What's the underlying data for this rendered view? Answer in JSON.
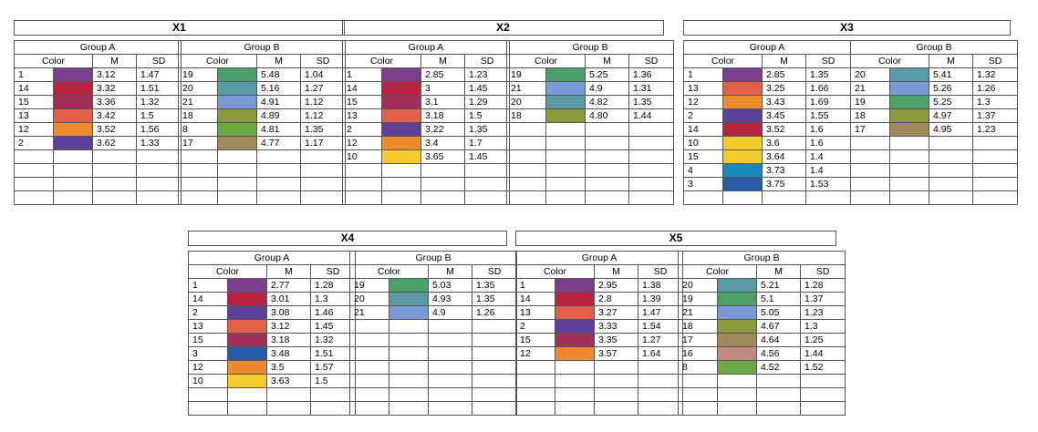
{
  "col_color": "Color",
  "col_m": "M",
  "col_sd": "SD",
  "panels": [
    {
      "title": "X1",
      "groups": [
        {
          "title": "Group A",
          "rows": [
            {
              "id": "1",
              "color": "#7b3f8c",
              "m": "3.12",
              "sd": "1.47"
            },
            {
              "id": "14",
              "color": "#b8233f",
              "m": "3.32",
              "sd": "1.51"
            },
            {
              "id": "15",
              "color": "#a0305a",
              "m": "3.36",
              "sd": "1.32"
            },
            {
              "id": "13",
              "color": "#e3604a",
              "m": "3.42",
              "sd": "1.5"
            },
            {
              "id": "12",
              "color": "#f08a30",
              "m": "3.52",
              "sd": "1.56"
            },
            {
              "id": "2",
              "color": "#5e3f9a",
              "m": "3.62",
              "sd": "1.33"
            }
          ]
        },
        {
          "title": "Group B",
          "rows": [
            {
              "id": "19",
              "color": "#4da06a",
              "m": "5.48",
              "sd": "1.04"
            },
            {
              "id": "20",
              "color": "#5a9aa6",
              "m": "5.16",
              "sd": "1.27"
            },
            {
              "id": "21",
              "color": "#7b9ad8",
              "m": "4.91",
              "sd": "1.12"
            },
            {
              "id": "18",
              "color": "#8a9a3c",
              "m": "4.89",
              "sd": "1.12"
            },
            {
              "id": "8",
              "color": "#6aaa44",
              "m": "4.81",
              "sd": "1.35"
            },
            {
              "id": "17",
              "color": "#a08a5a",
              "m": "4.77",
              "sd": "1.17"
            }
          ]
        }
      ]
    },
    {
      "title": "X2",
      "groups": [
        {
          "title": "Group A",
          "rows": [
            {
              "id": "1",
              "color": "#7b3f8c",
              "m": "2.85",
              "sd": "1.23"
            },
            {
              "id": "14",
              "color": "#b8233f",
              "m": "3",
              "sd": "1.45"
            },
            {
              "id": "15",
              "color": "#a0305a",
              "m": "3.1",
              "sd": "1.29"
            },
            {
              "id": "13",
              "color": "#e3604a",
              "m": "3.18",
              "sd": "1.5"
            },
            {
              "id": "2",
              "color": "#5e3f9a",
              "m": "3.22",
              "sd": "1.35"
            },
            {
              "id": "12",
              "color": "#f08a30",
              "m": "3.4",
              "sd": "1.7"
            },
            {
              "id": "10",
              "color": "#f5cc2e",
              "m": "3.65",
              "sd": "1.45"
            }
          ]
        },
        {
          "title": "Group B",
          "rows": [
            {
              "id": "19",
              "color": "#4da06a",
              "m": "5.25",
              "sd": "1.36"
            },
            {
              "id": "21",
              "color": "#7b9ad8",
              "m": "4.9",
              "sd": "1.31"
            },
            {
              "id": "20",
              "color": "#5a9aa6",
              "m": "4.82",
              "sd": "1.35"
            },
            {
              "id": "18",
              "color": "#8a9a3c",
              "m": "4.80",
              "sd": "1.44"
            }
          ]
        }
      ]
    },
    {
      "title": "X3",
      "groups": [
        {
          "title": "Group A",
          "rows": [
            {
              "id": "1",
              "color": "#7b3f8c",
              "m": "2.85",
              "sd": "1.35"
            },
            {
              "id": "13",
              "color": "#e3604a",
              "m": "3.25",
              "sd": "1.66"
            },
            {
              "id": "12",
              "color": "#f08a30",
              "m": "3.43",
              "sd": "1.69"
            },
            {
              "id": "2",
              "color": "#5e3f9a",
              "m": "3.45",
              "sd": "1.55"
            },
            {
              "id": "14",
              "color": "#b8233f",
              "m": "3.52",
              "sd": "1.6"
            },
            {
              "id": "10",
              "color": "#f5cc2e",
              "m": "3.6",
              "sd": "1.6"
            },
            {
              "id": "15",
              "color": "#f5cc2e",
              "m": "3.64",
              "sd": "1.4"
            },
            {
              "id": "4",
              "color": "#1a8ab8",
              "m": "3.73",
              "sd": "1.4"
            },
            {
              "id": "3",
              "color": "#2a5aa8",
              "m": "3.75",
              "sd": "1.53"
            }
          ]
        },
        {
          "title": "Group B",
          "rows": [
            {
              "id": "20",
              "color": "#5a9aa6",
              "m": "5.41",
              "sd": "1.32"
            },
            {
              "id": "21",
              "color": "#7b9ad8",
              "m": "5.26",
              "sd": "1.26"
            },
            {
              "id": "19",
              "color": "#4da06a",
              "m": "5.25",
              "sd": "1.3"
            },
            {
              "id": "18",
              "color": "#8a9a3c",
              "m": "4.97",
              "sd": "1.37"
            },
            {
              "id": "17",
              "color": "#a08a5a",
              "m": "4.95",
              "sd": "1.23"
            }
          ]
        }
      ]
    },
    {
      "title": "X4",
      "groups": [
        {
          "title": "Group A",
          "rows": [
            {
              "id": "1",
              "color": "#7b3f8c",
              "m": "2.77",
              "sd": "1.28"
            },
            {
              "id": "14",
              "color": "#b8233f",
              "m": "3.01",
              "sd": "1.3"
            },
            {
              "id": "2",
              "color": "#5e3f9a",
              "m": "3.08",
              "sd": "1.46"
            },
            {
              "id": "13",
              "color": "#e3604a",
              "m": "3.12",
              "sd": "1.45"
            },
            {
              "id": "15",
              "color": "#a0305a",
              "m": "3.18",
              "sd": "1.32"
            },
            {
              "id": "3",
              "color": "#2a5aa8",
              "m": "3.48",
              "sd": "1.51"
            },
            {
              "id": "12",
              "color": "#f08a30",
              "m": "3.5",
              "sd": "1.57"
            },
            {
              "id": "10",
              "color": "#f5cc2e",
              "m": "3.63",
              "sd": "1.5"
            }
          ]
        },
        {
          "title": "Group B",
          "rows": [
            {
              "id": "19",
              "color": "#4da06a",
              "m": "5.03",
              "sd": "1.35"
            },
            {
              "id": "20",
              "color": "#5a9aa6",
              "m": "4.93",
              "sd": "1.35"
            },
            {
              "id": "21",
              "color": "#7b9ad8",
              "m": "4.9",
              "sd": "1.26"
            }
          ]
        }
      ]
    },
    {
      "title": "X5",
      "groups": [
        {
          "title": "Group A",
          "rows": [
            {
              "id": "1",
              "color": "#7b3f8c",
              "m": "2.95",
              "sd": "1.38"
            },
            {
              "id": "14",
              "color": "#b8233f",
              "m": "2.8",
              "sd": "1.39"
            },
            {
              "id": "13",
              "color": "#e3604a",
              "m": "3.27",
              "sd": "1.47"
            },
            {
              "id": "2",
              "color": "#5e3f9a",
              "m": "3.33",
              "sd": "1.54"
            },
            {
              "id": "15",
              "color": "#a0305a",
              "m": "3.35",
              "sd": "1.27"
            },
            {
              "id": "12",
              "color": "#f08a30",
              "m": "3.57",
              "sd": "1.64"
            }
          ]
        },
        {
          "title": "Group B",
          "rows": [
            {
              "id": "20",
              "color": "#5a9aa6",
              "m": "5.21",
              "sd": "1.28"
            },
            {
              "id": "19",
              "color": "#4da06a",
              "m": "5.1",
              "sd": "1.37"
            },
            {
              "id": "21",
              "color": "#7b9ad8",
              "m": "5.05",
              "sd": "1.23"
            },
            {
              "id": "18",
              "color": "#8a9a3c",
              "m": "4.67",
              "sd": "1.3"
            },
            {
              "id": "17",
              "color": "#a08a5a",
              "m": "4.64",
              "sd": "1.25"
            },
            {
              "id": "16",
              "color": "#c08a80",
              "m": "4.56",
              "sd": "1.44"
            },
            {
              "id": "8",
              "color": "#6aaa44",
              "m": "4.52",
              "sd": "1.52"
            }
          ]
        }
      ]
    }
  ]
}
